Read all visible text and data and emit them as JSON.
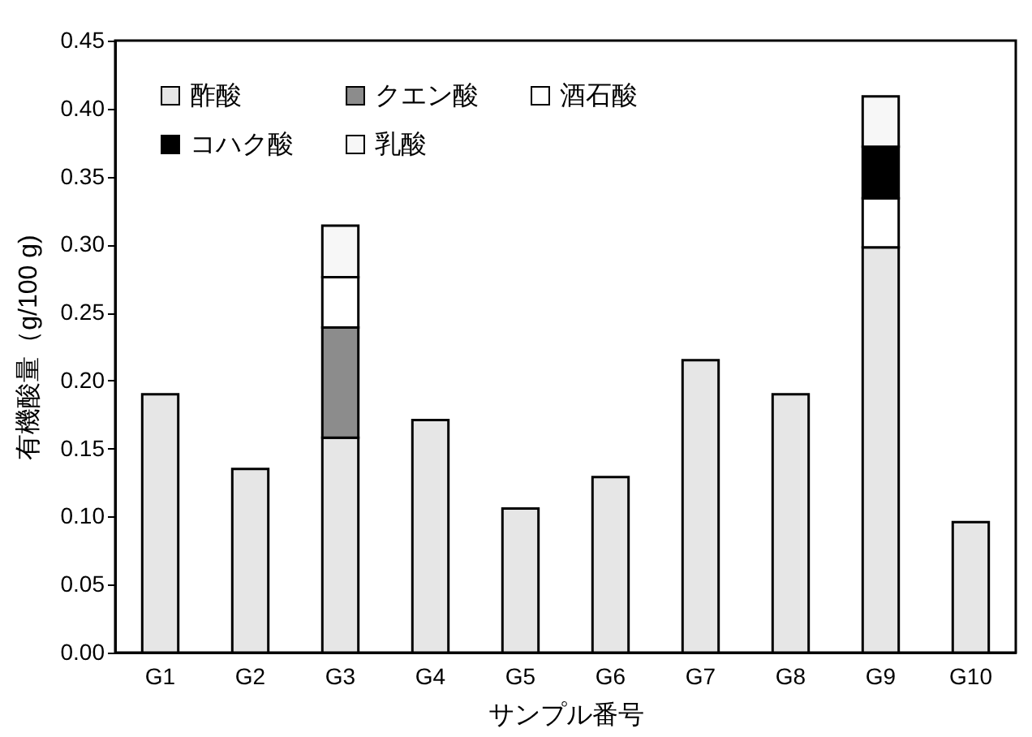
{
  "chart_data": {
    "type": "bar",
    "xlabel": "サンプル番号",
    "ylabel": "有機酸量（g/100 g)",
    "categories": [
      "G1",
      "G2",
      "G3",
      "G4",
      "G5",
      "G6",
      "G7",
      "G8",
      "G9",
      "G10"
    ],
    "stacked": true,
    "series": [
      {
        "name": "酢酸",
        "color": "#e6e6e6",
        "values": [
          0.19,
          0.135,
          0.158,
          0.171,
          0.106,
          0.129,
          0.215,
          0.19,
          0.298,
          0.096
        ]
      },
      {
        "name": "クエン酸",
        "color": "#8c8c8c",
        "values": [
          null,
          null,
          0.081,
          null,
          null,
          null,
          null,
          null,
          null,
          null
        ]
      },
      {
        "name": "酒石酸",
        "color": "#ffffff",
        "values": [
          null,
          null,
          0.037,
          null,
          null,
          null,
          null,
          null,
          0.036,
          null
        ]
      },
      {
        "name": "コハク酸",
        "color": "#000000",
        "values": [
          null,
          null,
          null,
          null,
          null,
          null,
          null,
          null,
          0.038,
          null
        ]
      },
      {
        "name": "乳酸",
        "color": "#f7f7f7",
        "values": [
          null,
          null,
          0.038,
          null,
          null,
          null,
          null,
          null,
          0.037,
          null
        ]
      }
    ],
    "ylim": [
      0,
      0.45
    ],
    "yticks": [
      {
        "value": 0,
        "label": "0.00"
      },
      {
        "value": 0.05,
        "label": "0.05"
      },
      {
        "value": 0.1,
        "label": "0.10"
      },
      {
        "value": 0.15,
        "label": "0.15"
      },
      {
        "value": 0.2,
        "label": "0.20"
      },
      {
        "value": 0.25,
        "label": "0.25"
      },
      {
        "value": 0.3,
        "label": "0.30"
      },
      {
        "value": 0.35,
        "label": "0.35"
      },
      {
        "value": 0.4,
        "label": "0.40"
      },
      {
        "value": 0.45,
        "label": "0.45"
      }
    ],
    "grid": false,
    "legend": "top left"
  }
}
